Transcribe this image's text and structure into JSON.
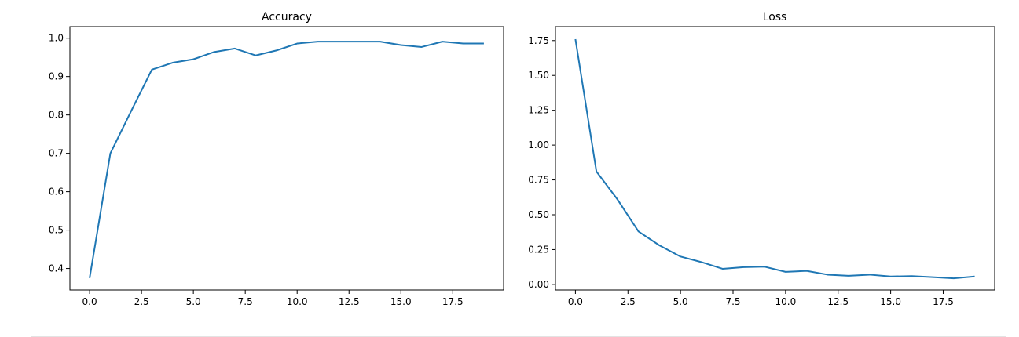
{
  "chart_data": [
    {
      "type": "line",
      "title": "Accuracy",
      "xlabel": "",
      "ylabel": "",
      "xlim": [
        -0.95,
        19.95
      ],
      "ylim": [
        0.344,
        1.03
      ],
      "xticks": [
        "0.0",
        "2.5",
        "5.0",
        "7.5",
        "10.0",
        "12.5",
        "15.0",
        "17.5"
      ],
      "yticks": [
        "0.4",
        "0.5",
        "0.6",
        "0.7",
        "0.8",
        "0.9",
        "1.0"
      ],
      "grid": false,
      "series": [
        {
          "color": "#1f77b4",
          "x": [
            0,
            1,
            2,
            3,
            4,
            5,
            6,
            7,
            8,
            9,
            10,
            11,
            12,
            13,
            14,
            15,
            16,
            17,
            18,
            19
          ],
          "y": [
            0.375,
            0.7,
            0.81,
            0.918,
            0.936,
            0.945,
            0.964,
            0.973,
            0.955,
            0.968,
            0.986,
            0.991,
            0.991,
            0.991,
            0.991,
            0.982,
            0.977,
            0.991,
            0.986,
            0.986
          ]
        }
      ]
    },
    {
      "type": "line",
      "title": "Loss",
      "xlabel": "",
      "ylabel": "",
      "xlim": [
        -0.95,
        19.95
      ],
      "ylim": [
        -0.04,
        1.85
      ],
      "xticks": [
        "0.0",
        "2.5",
        "5.0",
        "7.5",
        "10.0",
        "12.5",
        "15.0",
        "17.5"
      ],
      "yticks": [
        "0.00",
        "0.25",
        "0.50",
        "0.75",
        "1.00",
        "1.25",
        "1.50",
        "1.75"
      ],
      "grid": false,
      "series": [
        {
          "color": "#1f77b4",
          "x": [
            0,
            1,
            2,
            3,
            4,
            5,
            6,
            7,
            8,
            9,
            10,
            11,
            12,
            13,
            14,
            15,
            16,
            17,
            18,
            19
          ],
          "y": [
            1.76,
            0.81,
            0.61,
            0.38,
            0.28,
            0.2,
            0.16,
            0.112,
            0.124,
            0.127,
            0.09,
            0.097,
            0.07,
            0.062,
            0.07,
            0.057,
            0.06,
            0.052,
            0.044,
            0.057
          ]
        }
      ]
    }
  ]
}
